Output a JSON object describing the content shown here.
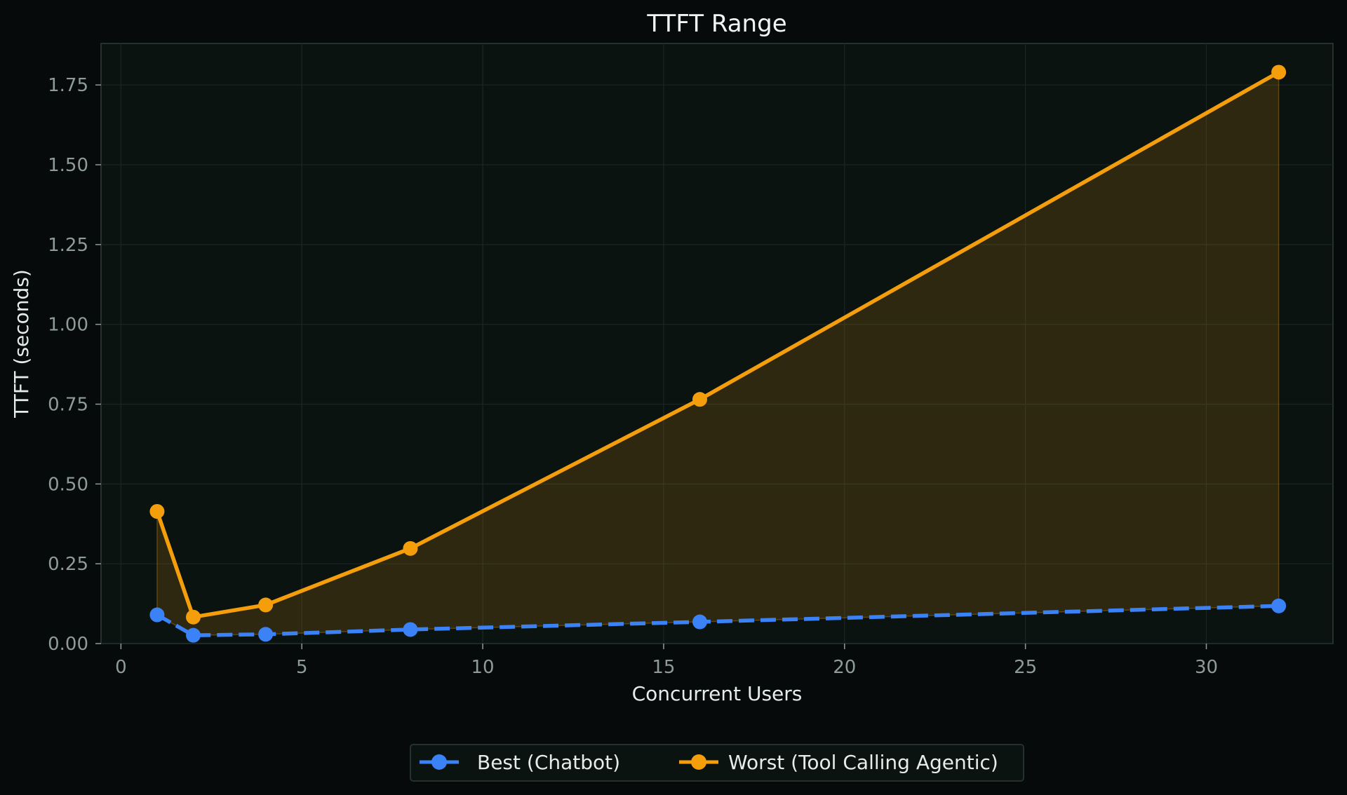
{
  "chart_data": {
    "type": "line",
    "title": "TTFT Range",
    "xlabel": "Concurrent Users",
    "ylabel": "TTFT (seconds)",
    "x": [
      1,
      2,
      4,
      8,
      16,
      32
    ],
    "series": [
      {
        "name": "Best (Chatbot)",
        "color": "#3b82f6",
        "style": "dashed",
        "marker": "circle",
        "values": [
          0.09,
          0.026,
          0.029,
          0.044,
          0.068,
          0.118
        ]
      },
      {
        "name": "Worst (Tool Calling Agentic)",
        "color": "#f59e0b",
        "style": "solid",
        "marker": "circle",
        "values": [
          0.414,
          0.083,
          0.121,
          0.298,
          0.765,
          1.79
        ]
      }
    ],
    "fill_between": {
      "from": "Best (Chatbot)",
      "to": "Worst (Tool Calling Agentic)",
      "color": "#f59e0b",
      "opacity": 0.15
    },
    "xlim": [
      -0.55,
      33.5
    ],
    "ylim": [
      0,
      1.88
    ],
    "xticks": [
      0,
      5,
      10,
      15,
      20,
      25,
      30
    ],
    "xtick_labels": [
      "0",
      "5",
      "10",
      "15",
      "20",
      "25",
      "30"
    ],
    "yticks": [
      0,
      0.25,
      0.5,
      0.75,
      1.0,
      1.25,
      1.5,
      1.75
    ],
    "ytick_labels": [
      "0.00",
      "0.25",
      "0.50",
      "0.75",
      "1.00",
      "1.25",
      "1.50",
      "1.75"
    ],
    "grid": true,
    "legend_position": "bottom-center"
  },
  "theme": {
    "background": "#060a0a",
    "plot_background": "#0b1311",
    "grid_color": "#1b2624",
    "spine_color": "#26302e"
  }
}
